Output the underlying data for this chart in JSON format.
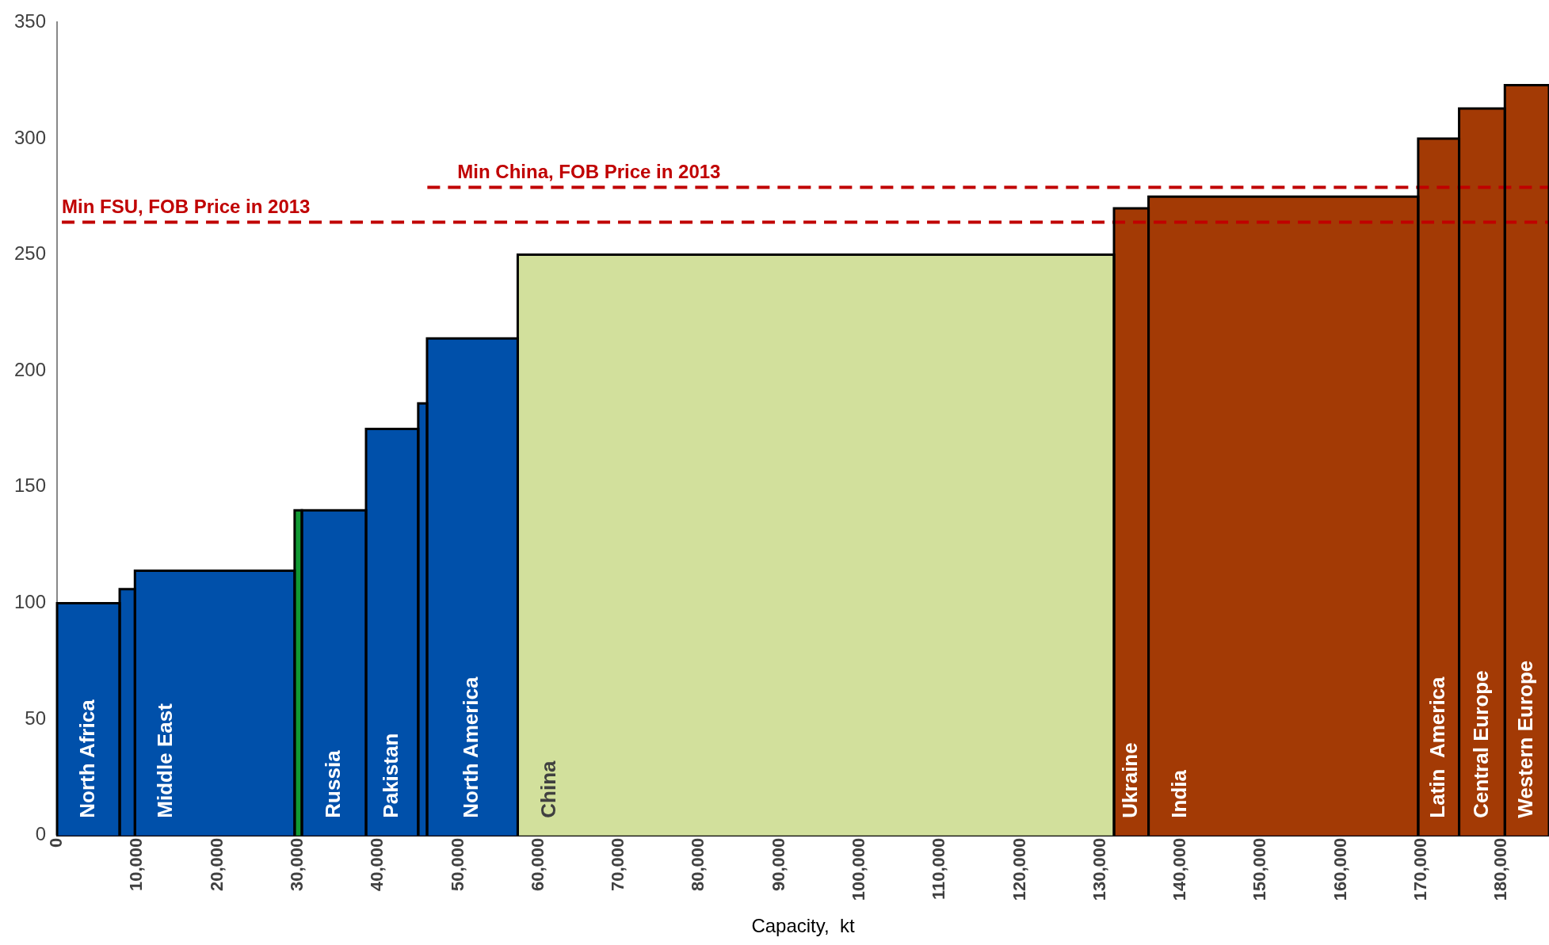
{
  "chart_data": {
    "type": "histogram",
    "xlabel": "Capacity,  kt",
    "bins": [
      0,
      7800,
      9700,
      29600,
      30500,
      38500,
      45000,
      46100,
      57400,
      131700,
      136000,
      169600,
      174700,
      180400,
      185900
    ],
    "values": [
      100,
      106,
      114,
      140,
      140,
      175,
      186,
      214,
      250,
      270,
      275,
      300,
      313,
      323
    ],
    "colors": [
      "#0050aa",
      "#0050aa",
      "#0050aa",
      "#119933",
      "#0050aa",
      "#0050aa",
      "#0050aa",
      "#0050aa",
      "#d2e09c",
      "#a33a05",
      "#a33a05",
      "#a33a05",
      "#a33a05",
      "#a33a05"
    ],
    "xlim": [
      0,
      185900
    ],
    "xticks": [
      0,
      {
        "value": 10000,
        "label": "10,000"
      },
      {
        "value": 20000,
        "label": "20,000"
      },
      {
        "value": 30000,
        "label": "30,000"
      },
      {
        "value": 40000,
        "label": "40,000"
      },
      {
        "value": 50000,
        "label": "50,000"
      },
      {
        "value": 60000,
        "label": "60,000"
      },
      {
        "value": 70000,
        "label": "70,000"
      },
      {
        "value": 80000,
        "label": "80,000"
      },
      {
        "value": 90000,
        "label": "90,000"
      },
      {
        "value": 100000,
        "label": "100,000"
      },
      {
        "value": 110000,
        "label": "110,000"
      },
      {
        "value": 120000,
        "label": "120,000"
      },
      {
        "value": 130000,
        "label": "130,000"
      },
      {
        "value": 140000,
        "label": "140,000"
      },
      {
        "value": 150000,
        "label": "150,000"
      },
      {
        "value": 160000,
        "label": "160,000"
      },
      {
        "value": 170000,
        "label": "170,000"
      },
      {
        "value": 180000,
        "label": "180,000"
      }
    ],
    "ylim": [
      0,
      350
    ],
    "yticks": [
      0,
      50,
      100,
      150,
      200,
      250,
      300,
      350
    ],
    "categories": [
      "North Africa",
      null,
      "Middle East",
      null,
      "Russia",
      "Pakistan",
      null,
      "North America",
      "China",
      "Ukraine",
      "India",
      "Latin  America",
      "Central Europe",
      "Western Europe"
    ],
    "ref_lines": [
      {
        "axis": "y",
        "value": 264,
        "label": "Min FSU, FOB Price in 2013",
        "color": "#c00000",
        "line_style": "dashed"
      },
      {
        "axis": "y",
        "value": 279,
        "label": "Min China, FOB Price in 2013",
        "color": "#c00000",
        "line_style": "dashed"
      }
    ]
  }
}
